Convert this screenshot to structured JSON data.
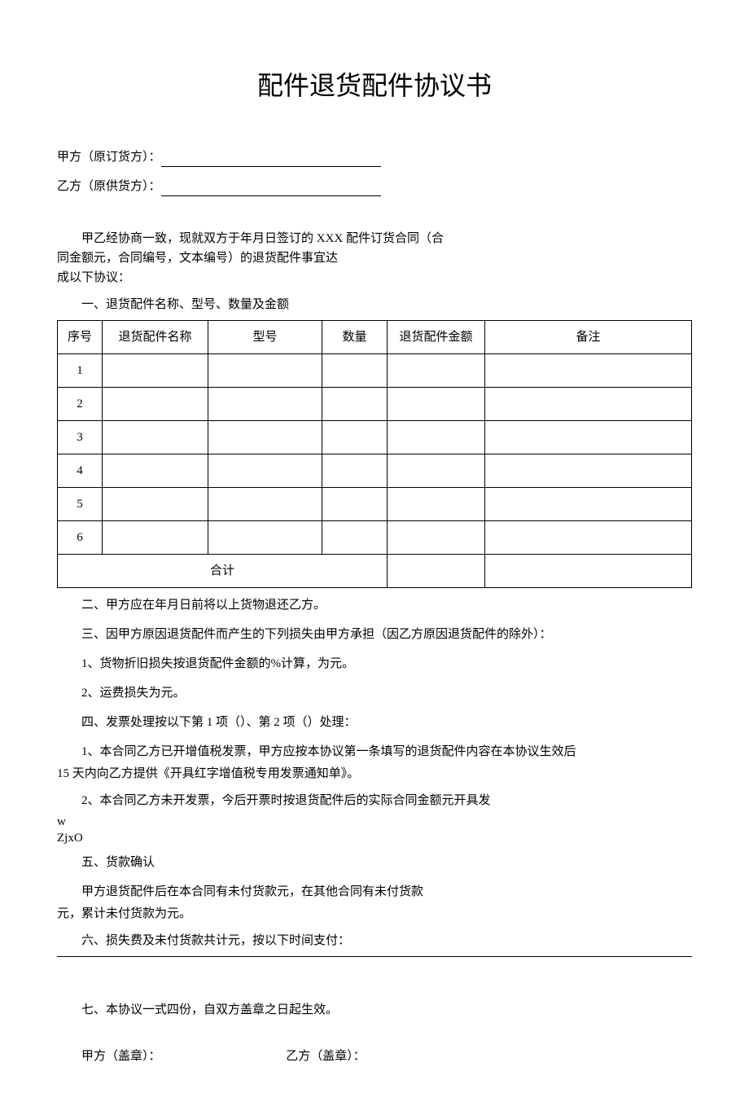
{
  "title": "配件退货配件协议书",
  "parties": {
    "a_label": "甲方（原订货方）：",
    "b_label": "乙方（原供货方）："
  },
  "intro": {
    "line1": "甲乙经协商一致，现就双方于年月日签订的 XXX 配件订货合同（合",
    "line2": "同金额元，合同编号，文本编号）的退货配件事宜达",
    "line3": "成以下协议："
  },
  "section1_title": "一、退货配件名称、型号、数量及金额",
  "table": {
    "headers": {
      "seq": "序号",
      "name": "退货配件名称",
      "model": "型号",
      "qty": "数量",
      "amount": "退货配件金额",
      "remark": "备注"
    },
    "rows": [
      {
        "seq": "1",
        "name": "",
        "model": "",
        "qty": "",
        "amount": "",
        "remark": ""
      },
      {
        "seq": "2",
        "name": "",
        "model": "",
        "qty": "",
        "amount": "",
        "remark": ""
      },
      {
        "seq": "3",
        "name": "",
        "model": "",
        "qty": "",
        "amount": "",
        "remark": ""
      },
      {
        "seq": "4",
        "name": "",
        "model": "",
        "qty": "",
        "amount": "",
        "remark": ""
      },
      {
        "seq": "5",
        "name": "",
        "model": "",
        "qty": "",
        "amount": "",
        "remark": ""
      },
      {
        "seq": "6",
        "name": "",
        "model": "",
        "qty": "",
        "amount": "",
        "remark": ""
      }
    ],
    "total_label": "合计"
  },
  "body": {
    "s2": "二、甲方应在年月日前将以上货物退还乙方。",
    "s3": "三、因甲方原因退货配件而产生的下列损失由甲方承担（因乙方原因退货配件的除外）：",
    "s3_1": "1、货物折旧损失按退货配件金额的%计算，为元。",
    "s3_2": "2、运费损失为元。",
    "s4": "四、发票处理按以下第 1 项（）、第 2 项（）处理：",
    "s4_1a": "1、本合同乙方已开增值税发票，甲方应按本协议第一条填写的退货配件内容在本协议生效后",
    "s4_1b": "15 天内向乙方提供《开具红字增值税专用发票通知单》。",
    "s4_2": "2、本合同乙方未开发票，今后开票时按退货配件后的实际合同金额元开具发",
    "stray1": "w",
    "stray2": "ZjxO",
    "s5": "五、货款确认",
    "s5_a": "甲方退货配件后在本合同有未付货款元，在其他合同有未付货款",
    "s5_b": "元，累计未付货款为元。",
    "s6": "六、损失费及未付货款共计元，按以下时间支付：",
    "s7": "七、本协议一式四份，自双方盖章之日起生效。"
  },
  "seals": {
    "a": "甲方（盖章）：",
    "b": "乙方（盖章）："
  }
}
